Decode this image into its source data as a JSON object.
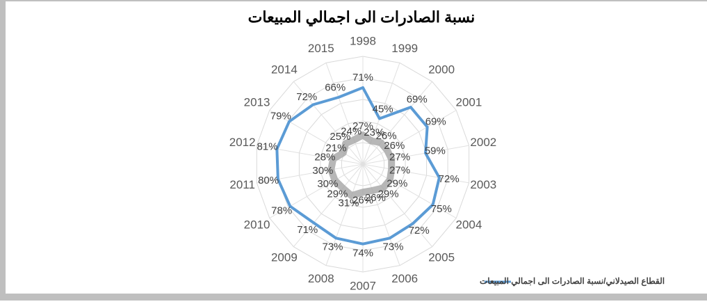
{
  "chart_data": {
    "type": "radar",
    "title": "نسبة الصادرات الى اجمالي المبيعات",
    "categories": [
      "1998",
      "1999",
      "2000",
      "2001",
      "2002",
      "2003",
      "2004",
      "2005",
      "2006",
      "2007",
      "2008",
      "2009",
      "2010",
      "2011",
      "2012",
      "2013",
      "2014",
      "2015"
    ],
    "rlim": [
      0,
      100
    ],
    "rticks": [
      20,
      40,
      60,
      80,
      100
    ],
    "grid": true,
    "legend": "bottom",
    "series": [
      {
        "name": "القطاع الصيدلاني/نسبة الصادرات الى اجمالي المبيعات",
        "color": "#5b9bd5",
        "values": [
          71,
          45,
          69,
          69,
          59,
          72,
          75,
          72,
          73,
          74,
          73,
          71,
          78,
          80,
          81,
          79,
          72,
          66
        ],
        "value_labels": [
          "71%",
          "45%",
          "69%",
          "69%",
          "59%",
          "72%",
          "75%",
          "72%",
          "73%",
          "74%",
          "73%",
          "71%",
          "78%",
          "80%",
          "81%",
          "79%",
          "72%",
          "66%"
        ]
      },
      {
        "color": "#a5a5a5",
        "values": [
          27,
          23,
          26,
          26,
          27,
          27,
          29,
          29,
          26,
          26,
          31,
          29,
          30,
          30,
          28,
          21,
          25,
          24
        ],
        "value_labels": [
          "27%",
          "23%",
          "26%",
          "26%",
          "27%",
          "27%",
          "29%",
          "29%",
          "26%",
          "26%",
          "31%",
          "29%",
          "30%",
          "30%",
          "28%",
          "21%",
          "25%",
          "24%"
        ]
      }
    ]
  }
}
